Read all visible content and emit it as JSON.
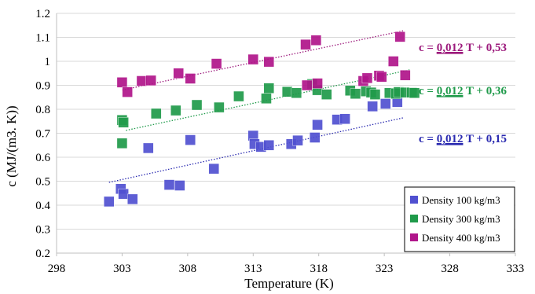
{
  "chart_data": {
    "type": "scatter",
    "xlabel": "Temperature (K)",
    "ylabel": "c (MJ/(m3. K))",
    "xlim": [
      298,
      333
    ],
    "ylim": [
      0.2,
      1.2
    ],
    "xticks": [
      298,
      303,
      308,
      313,
      318,
      323,
      328,
      333
    ],
    "yticks": [
      0.2,
      0.3,
      0.4,
      0.5,
      0.6,
      0.7,
      0.8,
      0.9,
      1.0,
      1.1,
      1.2
    ],
    "ytick_labels": [
      "0.2",
      "0.3",
      "0.4",
      "0.5",
      "0.6",
      "0.7",
      "0.8",
      "0.9",
      "1",
      "1.1",
      "1.2"
    ],
    "grid": "horizontal",
    "legend_position": "bottom-right",
    "series": [
      {
        "name": "Density 100 kg/m3",
        "color": "#5050d0",
        "points": [
          [
            302.0,
            0.415
          ],
          [
            302.9,
            0.468
          ],
          [
            303.1,
            0.447
          ],
          [
            303.8,
            0.425
          ],
          [
            305.0,
            0.638
          ],
          [
            306.6,
            0.485
          ],
          [
            307.4,
            0.482
          ],
          [
            308.2,
            0.672
          ],
          [
            310.0,
            0.552
          ],
          [
            313.0,
            0.69
          ],
          [
            313.1,
            0.655
          ],
          [
            313.6,
            0.643
          ],
          [
            314.2,
            0.65
          ],
          [
            315.9,
            0.655
          ],
          [
            316.4,
            0.67
          ],
          [
            317.7,
            0.682
          ],
          [
            317.9,
            0.735
          ],
          [
            319.4,
            0.757
          ],
          [
            320.0,
            0.76
          ],
          [
            322.1,
            0.812
          ],
          [
            323.1,
            0.823
          ],
          [
            324.0,
            0.83
          ]
        ],
        "trendline": {
          "equation": "c = 0,012 T + 0,15",
          "x0": 302,
          "x1": 324.5,
          "y0": 0.495,
          "y1": 0.765,
          "color": "#2a2ab0"
        }
      },
      {
        "name": "Density 300 kg/m3",
        "color": "#1f9a4a",
        "points": [
          [
            303.0,
            0.755
          ],
          [
            303.1,
            0.745
          ],
          [
            303.0,
            0.658
          ],
          [
            305.6,
            0.782
          ],
          [
            307.1,
            0.795
          ],
          [
            308.7,
            0.818
          ],
          [
            310.4,
            0.808
          ],
          [
            311.9,
            0.854
          ],
          [
            314.0,
            0.845
          ],
          [
            314.2,
            0.888
          ],
          [
            315.6,
            0.873
          ],
          [
            316.3,
            0.868
          ],
          [
            317.5,
            0.905
          ],
          [
            317.9,
            0.88
          ],
          [
            318.6,
            0.862
          ],
          [
            320.4,
            0.878
          ],
          [
            320.8,
            0.865
          ],
          [
            321.6,
            0.875
          ],
          [
            322.0,
            0.87
          ],
          [
            322.3,
            0.862
          ],
          [
            323.4,
            0.868
          ],
          [
            323.9,
            0.865
          ],
          [
            324.1,
            0.872
          ],
          [
            324.6,
            0.87
          ],
          [
            325.1,
            0.87
          ],
          [
            325.3,
            0.868
          ]
        ],
        "trendline": {
          "equation": "c = 0,012 T + 0,36",
          "x0": 303.3,
          "x1": 325,
          "y0": 0.712,
          "y1": 0.965,
          "color": "#1f9a4a"
        }
      },
      {
        "name": "Density 400 kg/m3",
        "color": "#b0158a",
        "points": [
          [
            303.0,
            0.912
          ],
          [
            303.4,
            0.872
          ],
          [
            304.5,
            0.918
          ],
          [
            305.2,
            0.92
          ],
          [
            307.3,
            0.95
          ],
          [
            308.2,
            0.928
          ],
          [
            310.2,
            0.99
          ],
          [
            313.0,
            1.008
          ],
          [
            314.2,
            0.998
          ],
          [
            317.0,
            1.07
          ],
          [
            317.8,
            1.088
          ],
          [
            317.1,
            0.9
          ],
          [
            317.9,
            0.908
          ],
          [
            321.4,
            0.918
          ],
          [
            321.7,
            0.93
          ],
          [
            322.6,
            0.94
          ],
          [
            322.8,
            0.935
          ],
          [
            323.7,
            1.0
          ],
          [
            324.2,
            1.102
          ],
          [
            324.6,
            0.942
          ]
        ],
        "trendline": {
          "equation": "c = 0,012 T + 0,53",
          "x0": 303,
          "x1": 324.5,
          "y0": 0.88,
          "y1": 1.128,
          "color": "#9c1a7c"
        }
      }
    ],
    "equations": [
      {
        "prefix": "c = ",
        "slope": "0,012",
        "suffix": " T + 0,53",
        "color": "#9c1a7c",
        "series": 2
      },
      {
        "prefix": "c = ",
        "slope": "0,012",
        "suffix": " T + 0,36",
        "color": "#1f9a4a",
        "series": 1
      },
      {
        "prefix": "c = ",
        "slope": "0,012",
        "suffix": " T + 0,15",
        "color": "#2a2ab0",
        "series": 0
      }
    ]
  }
}
